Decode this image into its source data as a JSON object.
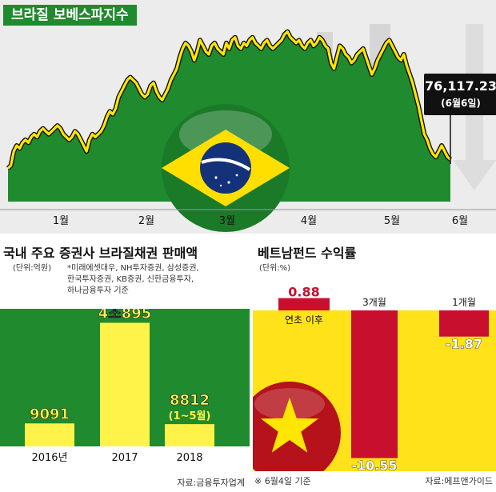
{
  "chart_data": [
    {
      "type": "area",
      "title": "브라질 보베스파지수",
      "x_labels": [
        "1월",
        "2월",
        "3월",
        "4월",
        "5월",
        "6월"
      ],
      "series": [
        {
          "values": [
            73,
            74,
            79,
            81,
            80,
            82,
            83,
            82,
            84,
            85,
            84,
            86,
            87,
            86,
            85,
            86,
            87,
            88,
            87,
            85,
            84,
            83,
            84,
            86,
            85,
            83,
            81,
            79,
            83,
            85,
            84,
            85,
            86,
            88,
            91,
            93,
            92,
            94,
            98,
            100,
            102,
            104,
            105,
            104,
            103,
            101,
            99,
            98,
            99,
            102,
            103,
            100,
            98,
            97,
            99,
            101,
            104,
            106,
            108,
            112,
            115,
            117,
            116,
            114,
            111,
            114,
            118,
            116,
            114,
            113,
            116,
            117,
            115,
            114,
            113,
            117,
            115,
            118,
            119,
            116,
            115,
            117,
            116,
            118,
            119,
            117,
            116,
            115,
            117,
            118,
            116,
            115,
            116,
            117,
            118,
            120,
            121,
            119,
            118,
            117,
            118,
            116,
            115,
            117,
            118,
            116,
            117,
            119,
            118,
            116,
            115,
            110,
            108,
            112,
            116,
            115,
            113,
            112,
            110,
            111,
            113,
            114,
            115,
            112,
            109,
            106,
            108,
            111,
            113,
            115,
            117,
            118,
            116,
            114,
            112,
            111,
            113,
            109,
            106,
            103,
            99,
            95,
            90,
            85,
            83,
            80,
            78,
            77,
            79,
            81,
            79,
            77,
            76.1
          ]
        }
      ],
      "callout_value": "76,117.23",
      "callout_date": "(6월6일)"
    },
    {
      "type": "bar",
      "title": "국내 주요 증권사 브라질채권 판매액",
      "unit_note": "(단위:억원)",
      "basis_notes": [
        "*미래에셋대우, NH투자증권, 삼성증권,",
        "한국투자증권, KB증권, 신한금융투자,",
        "하나금융투자 기준"
      ],
      "categories": [
        "2016년",
        "2017",
        "2018"
      ],
      "values": [
        9091,
        48895,
        8812
      ],
      "value_labels": [
        "9091",
        "4조895",
        "8812"
      ],
      "value_sublabels": [
        "",
        "",
        "(1~5월)"
      ],
      "source": "자료:금융투자업계"
    },
    {
      "type": "bar",
      "title": "베트남펀드 수익률",
      "unit_note": "(단위:%)",
      "categories": [
        "연초 이후",
        "3개월",
        "1개월"
      ],
      "values": [
        0.88,
        -10.55,
        -1.87
      ],
      "value_labels": [
        "0.88",
        "-10.55",
        "-1.87"
      ],
      "footnote": "※ 6월4일 기준",
      "source": "자료:에프앤가이드"
    }
  ],
  "colors": {
    "green": "#1f8a2e",
    "line_yellow": "#ffe600",
    "bar_yellow": "#fff34a",
    "band_yellow": "#ffe21a",
    "red": "#c8102e",
    "flag_blue": "#14327a"
  }
}
